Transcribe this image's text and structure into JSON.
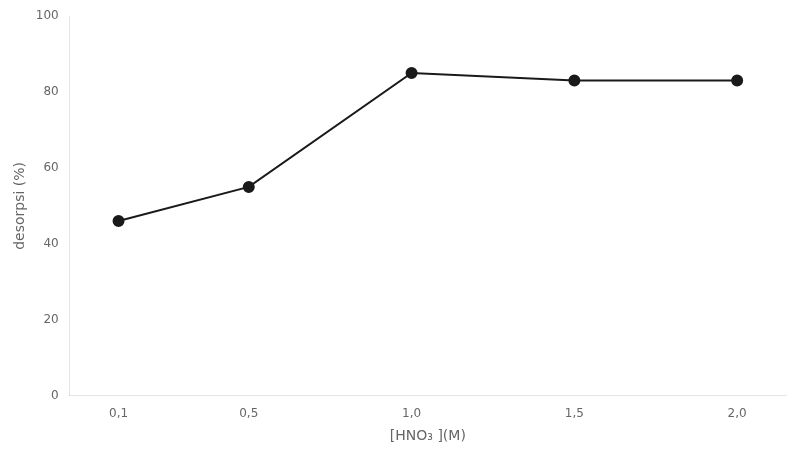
{
  "chart_data": {
    "type": "line",
    "x": [
      0.1,
      0.5,
      1.0,
      1.5,
      2.0
    ],
    "values": [
      46,
      55,
      85,
      83,
      83
    ],
    "xlabel": "[HNO₃ ](M)",
    "ylabel": "desorpsi (%)",
    "xlim": [
      -0.05,
      2.15
    ],
    "ylim": [
      0,
      100
    ],
    "xticks": [
      {
        "value": 0.1,
        "label": "0,1"
      },
      {
        "value": 0.5,
        "label": "0,5"
      },
      {
        "value": 1.0,
        "label": "1,0"
      },
      {
        "value": 1.5,
        "label": "1,5"
      },
      {
        "value": 2.0,
        "label": "2,0"
      }
    ],
    "yticks": [
      0,
      20,
      40,
      60,
      80,
      100
    ],
    "color": "#1a1a1a",
    "marker": "circle",
    "grid": false
  }
}
